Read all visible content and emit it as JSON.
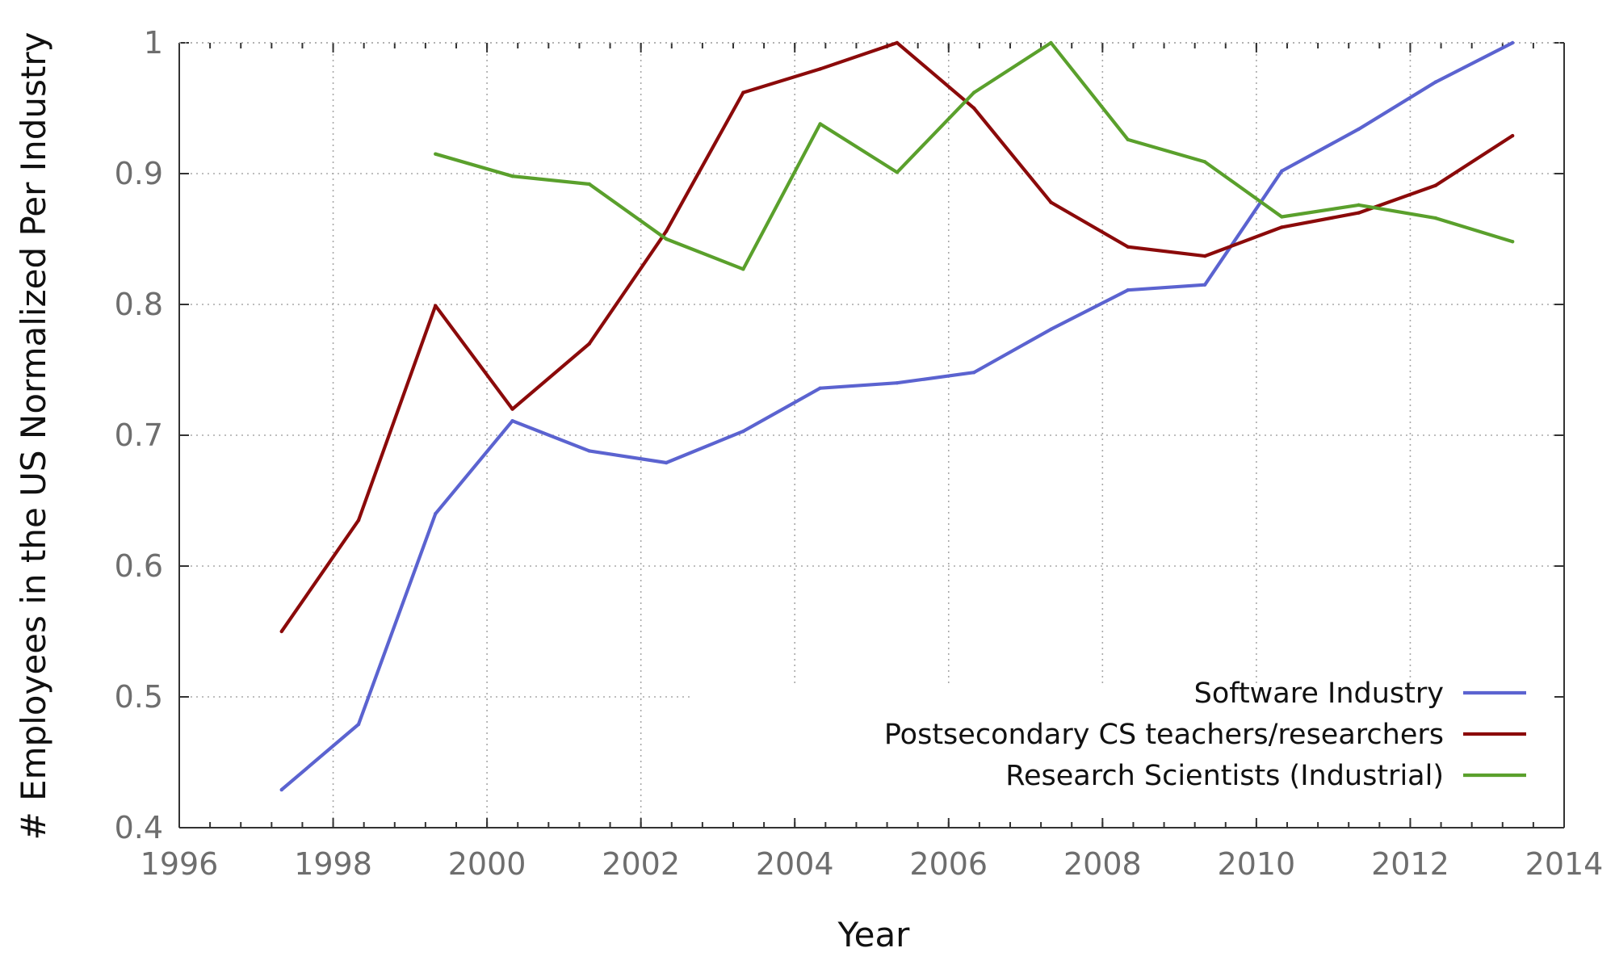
{
  "chart_data": {
    "type": "line",
    "xlabel": "Year",
    "ylabel": "# Employees in the US Normalized Per Industry",
    "xlim": [
      1996,
      2014
    ],
    "ylim": [
      0.4,
      1.0
    ],
    "x_ticks": [
      "1996",
      "1998",
      "2000",
      "2002",
      "2004",
      "2006",
      "2008",
      "2010",
      "2012",
      "2014"
    ],
    "y_ticks": [
      "0.4",
      "0.5",
      "0.6",
      "0.7",
      "0.8",
      "0.9",
      "1"
    ],
    "grid": true,
    "legend_position": "bottom-right",
    "series": [
      {
        "name": "Software Industry",
        "color": "#5b63d0",
        "x": [
          1997.33,
          1998.33,
          1999.33,
          2000.33,
          2001.33,
          2002.33,
          2003.33,
          2004.33,
          2005.33,
          2006.33,
          2007.33,
          2008.33,
          2009.33,
          2010.33,
          2011.33,
          2012.33,
          2013.33
        ],
        "values": [
          0.429,
          0.479,
          0.64,
          0.711,
          0.688,
          0.679,
          0.703,
          0.736,
          0.74,
          0.748,
          0.781,
          0.811,
          0.815,
          0.902,
          0.934,
          0.97,
          1.0
        ]
      },
      {
        "name": "Postsecondary CS teachers/researchers",
        "color": "#8b0a0a",
        "x": [
          1997.33,
          1998.33,
          1999.33,
          2000.33,
          2001.33,
          2002.33,
          2003.33,
          2004.33,
          2005.33,
          2006.33,
          2007.33,
          2008.33,
          2009.33,
          2010.33,
          2011.33,
          2012.33,
          2013.33
        ],
        "values": [
          0.55,
          0.635,
          0.799,
          0.72,
          0.77,
          0.856,
          0.962,
          0.98,
          1.0,
          0.95,
          0.878,
          0.844,
          0.837,
          0.859,
          0.87,
          0.891,
          0.929
        ]
      },
      {
        "name": "Research Scientists (Industrial)",
        "color": "#5aa02c",
        "x": [
          1999.33,
          2000.33,
          2001.33,
          2002.33,
          2003.33,
          2004.33,
          2005.33,
          2006.33,
          2007.33,
          2008.33,
          2009.33,
          2010.33,
          2011.33,
          2012.33,
          2013.33
        ],
        "values": [
          0.915,
          0.898,
          0.892,
          0.85,
          0.827,
          0.938,
          0.901,
          0.962,
          1.0,
          0.926,
          0.909,
          0.867,
          0.876,
          0.866,
          0.848
        ]
      }
    ]
  }
}
